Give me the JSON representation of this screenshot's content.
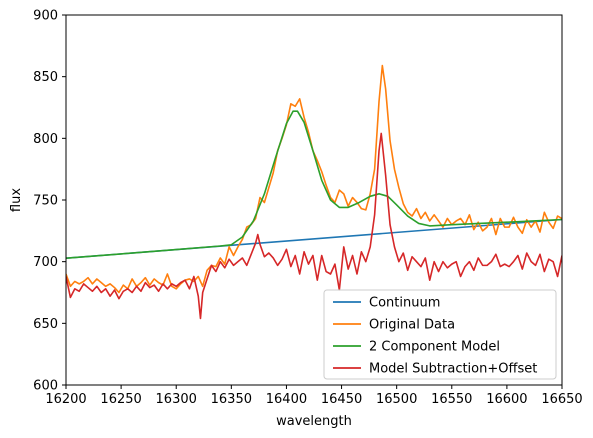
{
  "chart_data": {
    "type": "line",
    "title": "",
    "xlabel": "wavelength",
    "ylabel": "flux",
    "xlim": [
      16200,
      16650
    ],
    "ylim": [
      600,
      900
    ],
    "xticks": [
      16200,
      16250,
      16300,
      16350,
      16400,
      16450,
      16500,
      16550,
      16600,
      16650
    ],
    "yticks": [
      600,
      650,
      700,
      750,
      800,
      850,
      900
    ],
    "grid": false,
    "legend_position": "lower-right",
    "series": [
      {
        "name": "Continuum",
        "color": "#1f77b4",
        "points": [
          [
            16200,
            702.8
          ],
          [
            16650,
            734.2
          ]
        ]
      },
      {
        "name": "Original Data",
        "color": "#ff7f0e",
        "points": [
          [
            16200,
            690
          ],
          [
            16204,
            680
          ],
          [
            16208,
            684
          ],
          [
            16212,
            682
          ],
          [
            16216,
            684
          ],
          [
            16220,
            687
          ],
          [
            16224,
            682
          ],
          [
            16228,
            686
          ],
          [
            16232,
            683
          ],
          [
            16236,
            680
          ],
          [
            16240,
            682
          ],
          [
            16244,
            679
          ],
          [
            16248,
            675
          ],
          [
            16252,
            681
          ],
          [
            16256,
            678
          ],
          [
            16260,
            686
          ],
          [
            16264,
            680
          ],
          [
            16268,
            683
          ],
          [
            16272,
            687
          ],
          [
            16276,
            681
          ],
          [
            16280,
            686
          ],
          [
            16284,
            683
          ],
          [
            16288,
            681
          ],
          [
            16292,
            690
          ],
          [
            16296,
            680
          ],
          [
            16300,
            678
          ],
          [
            16304,
            682
          ],
          [
            16308,
            685
          ],
          [
            16312,
            686
          ],
          [
            16316,
            684
          ],
          [
            16320,
            688
          ],
          [
            16324,
            680
          ],
          [
            16328,
            693
          ],
          [
            16332,
            697
          ],
          [
            16336,
            696
          ],
          [
            16340,
            703
          ],
          [
            16344,
            698
          ],
          [
            16348,
            712
          ],
          [
            16352,
            705
          ],
          [
            16356,
            712
          ],
          [
            16360,
            718
          ],
          [
            16364,
            728
          ],
          [
            16368,
            730
          ],
          [
            16372,
            735
          ],
          [
            16376,
            752
          ],
          [
            16380,
            748
          ],
          [
            16384,
            760
          ],
          [
            16388,
            772
          ],
          [
            16392,
            790
          ],
          [
            16396,
            800
          ],
          [
            16400,
            811
          ],
          [
            16404,
            828
          ],
          [
            16408,
            826
          ],
          [
            16412,
            832
          ],
          [
            16416,
            817
          ],
          [
            16420,
            805
          ],
          [
            16424,
            790
          ],
          [
            16428,
            782
          ],
          [
            16432,
            773
          ],
          [
            16436,
            762
          ],
          [
            16440,
            752
          ],
          [
            16444,
            748
          ],
          [
            16448,
            758
          ],
          [
            16452,
            755
          ],
          [
            16456,
            745
          ],
          [
            16460,
            752
          ],
          [
            16464,
            748
          ],
          [
            16468,
            743
          ],
          [
            16472,
            742
          ],
          [
            16476,
            755
          ],
          [
            16480,
            775
          ],
          [
            16484,
            830
          ],
          [
            16487,
            859
          ],
          [
            16490,
            840
          ],
          [
            16494,
            798
          ],
          [
            16498,
            775
          ],
          [
            16502,
            760
          ],
          [
            16506,
            747
          ],
          [
            16510,
            740
          ],
          [
            16514,
            737
          ],
          [
            16518,
            743
          ],
          [
            16522,
            735
          ],
          [
            16526,
            740
          ],
          [
            16530,
            733
          ],
          [
            16534,
            738
          ],
          [
            16538,
            733
          ],
          [
            16542,
            728
          ],
          [
            16546,
            735
          ],
          [
            16550,
            730
          ],
          [
            16554,
            733
          ],
          [
            16558,
            735
          ],
          [
            16562,
            730
          ],
          [
            16566,
            738
          ],
          [
            16570,
            726
          ],
          [
            16574,
            732
          ],
          [
            16578,
            725
          ],
          [
            16582,
            728
          ],
          [
            16586,
            735
          ],
          [
            16590,
            722
          ],
          [
            16594,
            735
          ],
          [
            16598,
            728
          ],
          [
            16602,
            728
          ],
          [
            16606,
            736
          ],
          [
            16610,
            728
          ],
          [
            16614,
            723
          ],
          [
            16618,
            734
          ],
          [
            16622,
            728
          ],
          [
            16626,
            733
          ],
          [
            16630,
            724
          ],
          [
            16634,
            740
          ],
          [
            16638,
            732
          ],
          [
            16642,
            727
          ],
          [
            16646,
            737
          ],
          [
            16650,
            735
          ]
        ]
      },
      {
        "name": "2 Component Model",
        "color": "#2ca02c",
        "points": [
          [
            16200,
            702.8
          ],
          [
            16250,
            706.3
          ],
          [
            16300,
            709.8
          ],
          [
            16340,
            712.7
          ],
          [
            16350,
            713.7
          ],
          [
            16360,
            720
          ],
          [
            16370,
            733
          ],
          [
            16380,
            755
          ],
          [
            16390,
            784
          ],
          [
            16400,
            812
          ],
          [
            16406,
            822
          ],
          [
            16410,
            822
          ],
          [
            16416,
            813
          ],
          [
            16424,
            790
          ],
          [
            16432,
            766
          ],
          [
            16440,
            750
          ],
          [
            16448,
            744
          ],
          [
            16456,
            744
          ],
          [
            16466,
            748
          ],
          [
            16476,
            753
          ],
          [
            16484,
            755
          ],
          [
            16492,
            753
          ],
          [
            16500,
            746
          ],
          [
            16510,
            737
          ],
          [
            16520,
            731
          ],
          [
            16530,
            729
          ],
          [
            16550,
            730
          ],
          [
            16600,
            732
          ],
          [
            16650,
            734.2
          ]
        ]
      },
      {
        "name": "Model Subtraction+Offset",
        "color": "#d62728",
        "points": [
          [
            16200,
            688
          ],
          [
            16204,
            671
          ],
          [
            16208,
            678
          ],
          [
            16212,
            676
          ],
          [
            16216,
            682
          ],
          [
            16220,
            679
          ],
          [
            16224,
            676
          ],
          [
            16228,
            680
          ],
          [
            16232,
            675
          ],
          [
            16236,
            678
          ],
          [
            16240,
            672
          ],
          [
            16244,
            677
          ],
          [
            16248,
            670
          ],
          [
            16252,
            676
          ],
          [
            16256,
            678
          ],
          [
            16260,
            675
          ],
          [
            16264,
            680
          ],
          [
            16268,
            676
          ],
          [
            16272,
            683
          ],
          [
            16276,
            679
          ],
          [
            16280,
            681
          ],
          [
            16284,
            676
          ],
          [
            16288,
            682
          ],
          [
            16292,
            678
          ],
          [
            16296,
            682
          ],
          [
            16300,
            680
          ],
          [
            16304,
            683
          ],
          [
            16308,
            685
          ],
          [
            16312,
            678
          ],
          [
            16316,
            688
          ],
          [
            16320,
            672
          ],
          [
            16322,
            654
          ],
          [
            16324,
            675
          ],
          [
            16328,
            686
          ],
          [
            16332,
            697
          ],
          [
            16336,
            692
          ],
          [
            16340,
            700
          ],
          [
            16344,
            695
          ],
          [
            16348,
            702
          ],
          [
            16352,
            697
          ],
          [
            16356,
            700
          ],
          [
            16360,
            703
          ],
          [
            16364,
            697
          ],
          [
            16368,
            706
          ],
          [
            16372,
            715
          ],
          [
            16374,
            722
          ],
          [
            16376,
            714
          ],
          [
            16380,
            704
          ],
          [
            16384,
            707
          ],
          [
            16388,
            703
          ],
          [
            16392,
            697
          ],
          [
            16396,
            702
          ],
          [
            16400,
            710
          ],
          [
            16404,
            696
          ],
          [
            16408,
            705
          ],
          [
            16412,
            690
          ],
          [
            16416,
            708
          ],
          [
            16420,
            698
          ],
          [
            16424,
            705
          ],
          [
            16428,
            685
          ],
          [
            16432,
            705
          ],
          [
            16436,
            692
          ],
          [
            16440,
            690
          ],
          [
            16444,
            698
          ],
          [
            16448,
            677
          ],
          [
            16452,
            712
          ],
          [
            16456,
            694
          ],
          [
            16460,
            705
          ],
          [
            16464,
            690
          ],
          [
            16468,
            708
          ],
          [
            16472,
            700
          ],
          [
            16476,
            712
          ],
          [
            16480,
            738
          ],
          [
            16484,
            790
          ],
          [
            16486,
            804
          ],
          [
            16490,
            770
          ],
          [
            16494,
            730
          ],
          [
            16498,
            712
          ],
          [
            16502,
            700
          ],
          [
            16506,
            707
          ],
          [
            16510,
            693
          ],
          [
            16514,
            704
          ],
          [
            16518,
            700
          ],
          [
            16522,
            696
          ],
          [
            16526,
            703
          ],
          [
            16530,
            685
          ],
          [
            16534,
            700
          ],
          [
            16538,
            692
          ],
          [
            16542,
            700
          ],
          [
            16546,
            695
          ],
          [
            16550,
            698
          ],
          [
            16554,
            700
          ],
          [
            16558,
            688
          ],
          [
            16562,
            696
          ],
          [
            16566,
            700
          ],
          [
            16570,
            693
          ],
          [
            16574,
            703
          ],
          [
            16578,
            697
          ],
          [
            16582,
            697
          ],
          [
            16586,
            700
          ],
          [
            16590,
            706
          ],
          [
            16594,
            696
          ],
          [
            16598,
            698
          ],
          [
            16602,
            696
          ],
          [
            16606,
            700
          ],
          [
            16610,
            705
          ],
          [
            16614,
            694
          ],
          [
            16618,
            707
          ],
          [
            16622,
            700
          ],
          [
            16626,
            697
          ],
          [
            16630,
            706
          ],
          [
            16634,
            692
          ],
          [
            16638,
            702
          ],
          [
            16642,
            700
          ],
          [
            16646,
            688
          ],
          [
            16650,
            705
          ]
        ]
      }
    ]
  }
}
